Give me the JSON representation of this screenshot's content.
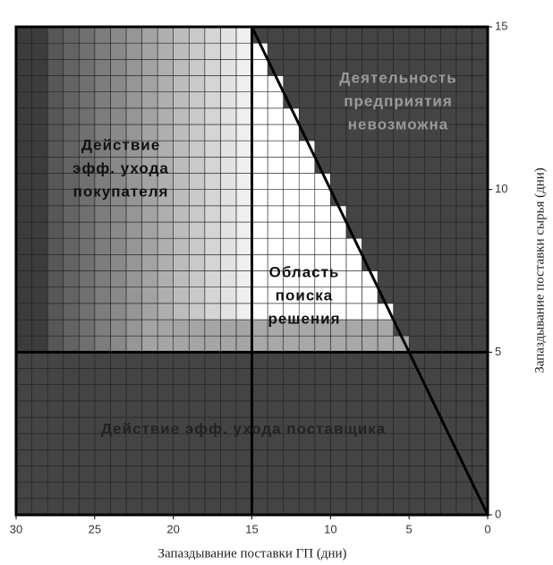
{
  "chart_data": {
    "type": "region",
    "xlabel": "Запаздывание поставки ГП (дни)",
    "ylabel": "Запаздывание поставки сырья (дни)",
    "xlim": [
      30,
      0
    ],
    "xticks": [
      30,
      25,
      20,
      15,
      10,
      5,
      0
    ],
    "ylim": [
      0,
      15
    ],
    "yticks": [
      0,
      5,
      10,
      15
    ],
    "xgrid_step": 1,
    "ygrid_step": 0.5,
    "boundary_x": 15,
    "boundary_y": 5,
    "line": {
      "x": [
        15,
        0
      ],
      "y": [
        15,
        0
      ]
    },
    "regions": [
      {
        "label": [
          "Деятельность",
          "предприятия",
          "невозможна"
        ]
      },
      {
        "label": [
          "Действие",
          "эфф. ухода",
          "покупателя"
        ]
      },
      {
        "label": [
          "Область",
          "поиска",
          "решения"
        ]
      },
      {
        "label": [
          "Действие эфф. ухода поставщика"
        ]
      }
    ]
  }
}
